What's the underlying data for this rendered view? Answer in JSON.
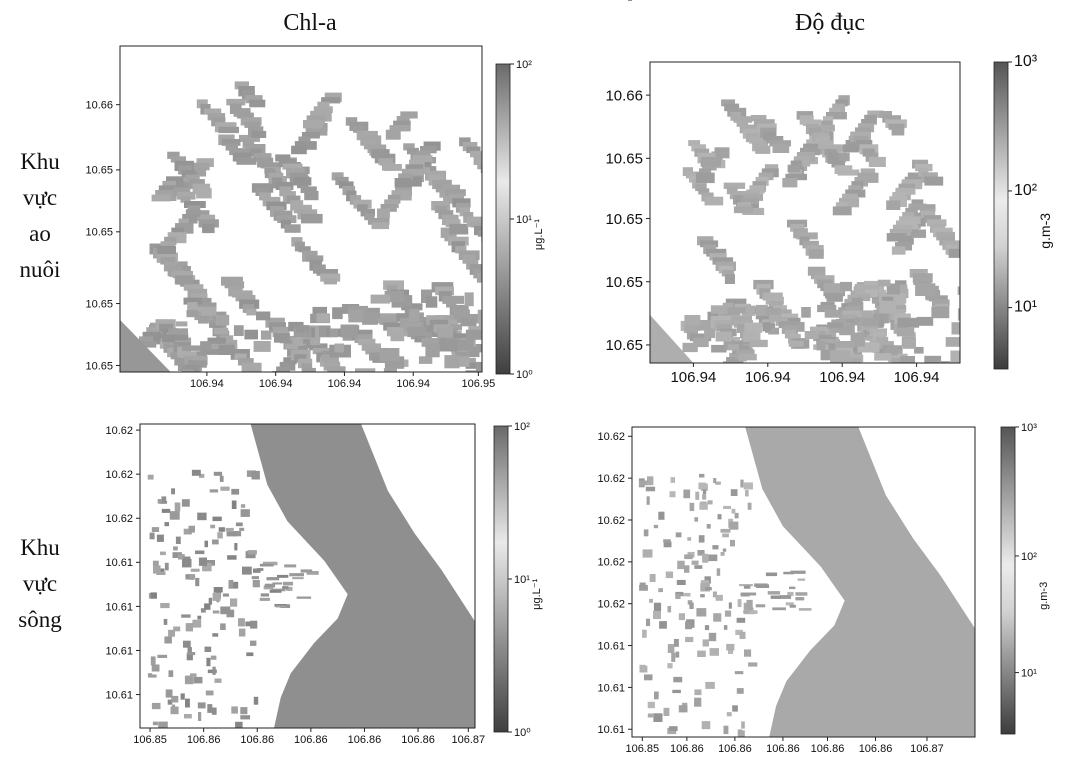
{
  "columns": [
    "Chl-a",
    "Độ đục"
  ],
  "rows": [
    {
      "lines": [
        "Khu",
        "vực",
        "ao",
        "nuôi"
      ]
    },
    {
      "lines": [
        "Khu",
        "vực",
        "sông"
      ]
    }
  ],
  "colors": {
    "water": "#8c8c8c",
    "pond": "#9d9d9d",
    "frame": "#222222",
    "bar_dark": "#4a4a4a",
    "bar_light": "#e8e8e8"
  },
  "chart_data": [
    {
      "type": "heatmap",
      "id": "chl-pond",
      "title": "Chl-a",
      "region": "Khu vực ao nuôi",
      "x_ticks": [
        "106.94",
        "106.94",
        "106.94",
        "106.94",
        "106.95"
      ],
      "y_ticks": [
        "10.66",
        "10.65",
        "10.65",
        "10.65",
        "10.65"
      ],
      "colorbar": {
        "scale": "log",
        "range": [
          1,
          100
        ],
        "ticks": [
          "10²",
          "10¹",
          "10⁰"
        ],
        "label": "μg.L⁻¹"
      }
    },
    {
      "type": "heatmap",
      "id": "turb-pond",
      "title": "Độ đục",
      "region": "Khu vực ao nuôi",
      "x_ticks": [
        "106.94",
        "106.94",
        "106.94",
        "106.94"
      ],
      "y_ticks": [
        "10.66",
        "10.65",
        "10.65",
        "10.65",
        "10.65"
      ],
      "colorbar": {
        "scale": "log",
        "range": [
          3,
          1000
        ],
        "ticks": [
          "10³",
          "10²",
          "10¹"
        ],
        "label": "g.m-3"
      }
    },
    {
      "type": "heatmap",
      "id": "chl-river",
      "title": "Chl-a",
      "region": "Khu vực sông",
      "x_ticks": [
        "106.85",
        "106.86",
        "106.86",
        "106.86",
        "106.86",
        "106.86",
        "106.87"
      ],
      "y_ticks": [
        "10.62",
        "10.62",
        "10.62",
        "10.61",
        "10.61",
        "10.61",
        "10.61"
      ],
      "colorbar": {
        "scale": "log",
        "range": [
          1,
          100
        ],
        "ticks": [
          "10²",
          "10¹",
          "10⁰"
        ],
        "label": "μg.L⁻¹"
      }
    },
    {
      "type": "heatmap",
      "id": "turb-river",
      "title": "Độ đục",
      "region": "Khu vực sông",
      "x_ticks": [
        "106.85",
        "106.86",
        "106.86",
        "106.86",
        "106.86",
        "106.86",
        "106.87"
      ],
      "y_ticks": [
        "10.62",
        "10.62",
        "10.62",
        "10.62",
        "10.62",
        "10.61",
        "10.61",
        "10.61",
        "10.61"
      ],
      "colorbar": {
        "scale": "log",
        "range": [
          3,
          1000
        ],
        "ticks": [
          "10³",
          "10²",
          "10¹"
        ],
        "label": "g.m-3"
      }
    }
  ]
}
